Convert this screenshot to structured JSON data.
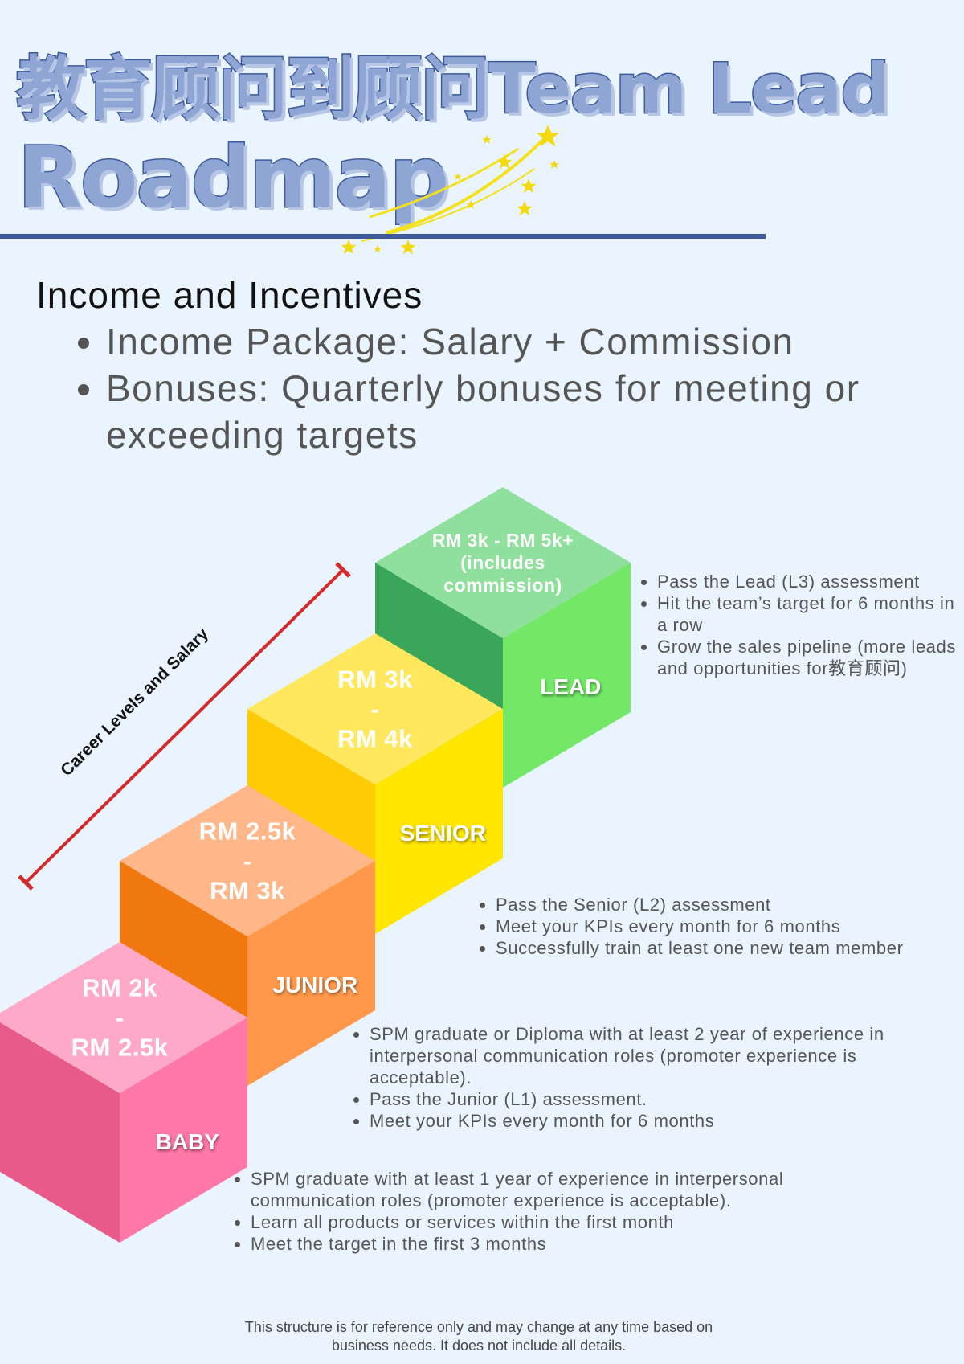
{
  "title": {
    "line1": "教育顾问到顾问Team Lead",
    "line2": "Roadmap",
    "fill": "#8fa6d4",
    "stroke": "#3d5a9e"
  },
  "income": {
    "heading": "Income and Incentives",
    "bullets": [
      "Income Package: Salary + Commission",
      "Bonuses: Quarterly bonuses for meeting or exceeding targets"
    ]
  },
  "axis_label": "Career Levels and Salary",
  "arrow_color": "#d42a2a",
  "levels": [
    {
      "name": "LEAD",
      "salary_lines": [
        "RM 3k - RM 5k+",
        "(includes",
        "commission)"
      ],
      "colors": {
        "top": "#8fe09c",
        "left": "#3aa65a",
        "right": "#72e866"
      },
      "requirements": [
        "Pass the Lead (L3) assessment",
        "Hit the team’s target for 6 months in a row",
        "Grow the sales pipeline (more leads and opportunities for教育顾问)"
      ]
    },
    {
      "name": "SENIOR",
      "salary_lines": [
        "RM 3k",
        "-",
        "RM 4k"
      ],
      "colors": {
        "top": "#ffe75e",
        "left": "#ffcb05",
        "right": "#ffe600"
      },
      "requirements": [
        "Pass the Senior (L2) assessment",
        "Meet your KPIs every month for 6 months",
        "Successfully train at least one new team member"
      ]
    },
    {
      "name": "JUNIOR",
      "salary_lines": [
        "RM 2.5k",
        "-",
        "RM 3k"
      ],
      "colors": {
        "top": "#ffb789",
        "left": "#f0780e",
        "right": "#ff984a"
      },
      "requirements": [
        "SPM graduate or Diploma with at least 2 year of experience in interpersonal communication roles (promoter experience is acceptable).",
        "Pass the Junior (L1) assessment.",
        "Meet your KPIs every month for 6 months"
      ]
    },
    {
      "name": "BABY",
      "salary_lines": [
        "RM 2k",
        "-",
        "RM 2.5k"
      ],
      "colors": {
        "top": "#ffa9c9",
        "left": "#e85a8a",
        "right": "#ff78a7"
      },
      "requirements": [
        "SPM graduate with at least 1 year of experience in interpersonal communication roles (promoter experience is acceptable).",
        "Learn all products or services within the first month",
        "Meet the target in the first 3 months"
      ]
    }
  ],
  "footer": {
    "line1": "This structure is for reference only and may change at any time based on",
    "line2": "business needs. It does not include all details."
  }
}
